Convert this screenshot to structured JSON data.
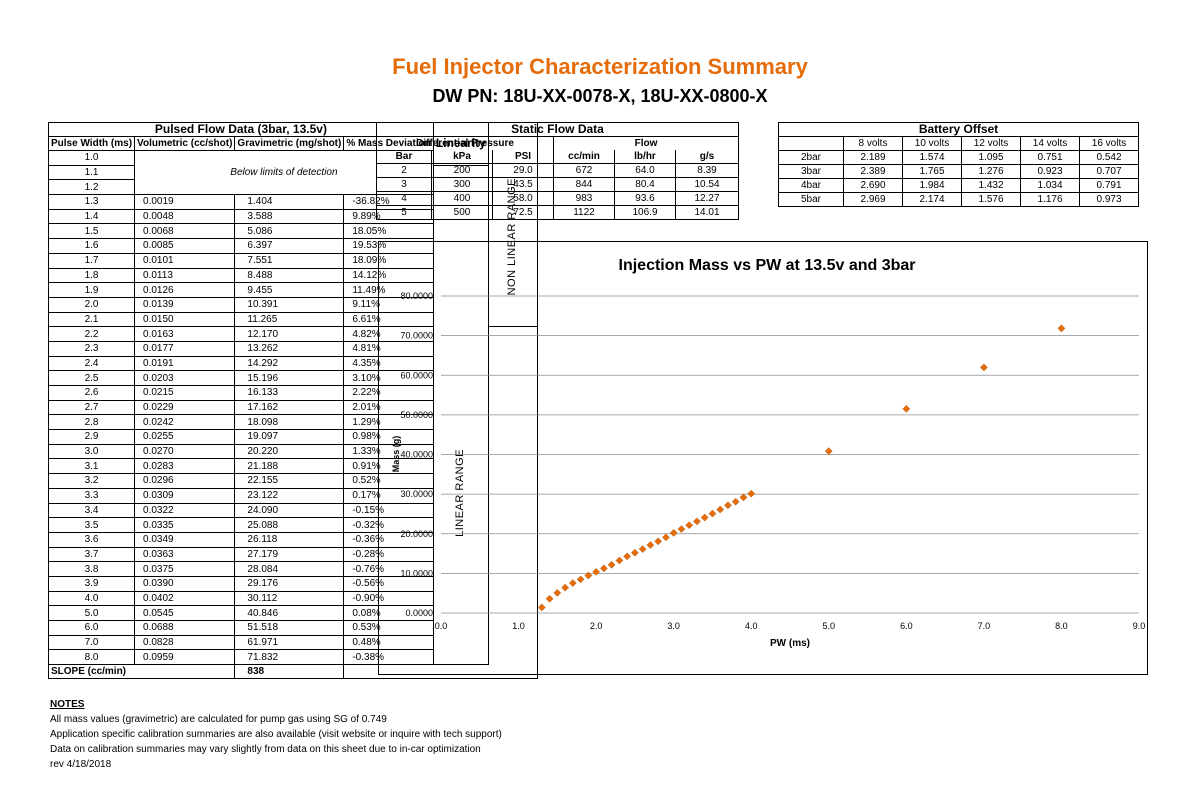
{
  "title": "Fuel Injector Characterization Summary",
  "subtitle": "DW PN: 18U-XX-0078-X, 18U-XX-0800-X",
  "pulsed": {
    "caption": "Pulsed Flow Data (3bar, 13.5v)",
    "headers": [
      "Pulse Width (ms)",
      "Volumetric (cc/shot)",
      "Gravimetric (mg/shot)",
      "% Mass Deviation",
      "Linearity"
    ],
    "below_limit_text": "Below limits of detection",
    "below_limit_rows": [
      "1.0",
      "1.1",
      "1.2"
    ],
    "non_linear_label": "NON LINEAR RANGE",
    "linear_label": "LINEAR RANGE",
    "rows": [
      [
        "1.3",
        "0.0019",
        "1.404",
        "-36.82%"
      ],
      [
        "1.4",
        "0.0048",
        "3.588",
        "9.89%"
      ],
      [
        "1.5",
        "0.0068",
        "5.086",
        "18.05%"
      ],
      [
        "1.6",
        "0.0085",
        "6.397",
        "19.53%"
      ],
      [
        "1.7",
        "0.0101",
        "7.551",
        "18.09%"
      ],
      [
        "1.8",
        "0.0113",
        "8.488",
        "14.12%"
      ],
      [
        "1.9",
        "0.0126",
        "9.455",
        "11.49%"
      ],
      [
        "2.0",
        "0.0139",
        "10.391",
        "9.11%"
      ],
      [
        "2.1",
        "0.0150",
        "11.265",
        "6.61%"
      ],
      [
        "2.2",
        "0.0163",
        "12.170",
        "4.82%"
      ],
      [
        "2.3",
        "0.0177",
        "13.262",
        "4.81%"
      ],
      [
        "2.4",
        "0.0191",
        "14.292",
        "4.35%"
      ],
      [
        "2.5",
        "0.0203",
        "15.196",
        "3.10%"
      ],
      [
        "2.6",
        "0.0215",
        "16.133",
        "2.22%"
      ],
      [
        "2.7",
        "0.0229",
        "17.162",
        "2.01%"
      ],
      [
        "2.8",
        "0.0242",
        "18.098",
        "1.29%"
      ],
      [
        "2.9",
        "0.0255",
        "19.097",
        "0.98%"
      ],
      [
        "3.0",
        "0.0270",
        "20.220",
        "1.33%"
      ],
      [
        "3.1",
        "0.0283",
        "21.188",
        "0.91%"
      ],
      [
        "3.2",
        "0.0296",
        "22.155",
        "0.52%"
      ],
      [
        "3.3",
        "0.0309",
        "23.122",
        "0.17%"
      ],
      [
        "3.4",
        "0.0322",
        "24.090",
        "-0.15%"
      ],
      [
        "3.5",
        "0.0335",
        "25.088",
        "-0.32%"
      ],
      [
        "3.6",
        "0.0349",
        "26.118",
        "-0.36%"
      ],
      [
        "3.7",
        "0.0363",
        "27.179",
        "-0.28%"
      ],
      [
        "3.8",
        "0.0375",
        "28.084",
        "-0.76%"
      ],
      [
        "3.9",
        "0.0390",
        "29.176",
        "-0.56%"
      ],
      [
        "4.0",
        "0.0402",
        "30.112",
        "-0.90%"
      ],
      [
        "5.0",
        "0.0545",
        "40.846",
        "0.08%"
      ],
      [
        "6.0",
        "0.0688",
        "51.518",
        "0.53%"
      ],
      [
        "7.0",
        "0.0828",
        "61.971",
        "0.48%"
      ],
      [
        "8.0",
        "0.0959",
        "71.832",
        "-0.38%"
      ]
    ],
    "slope_label": "SLOPE (cc/min)",
    "slope_value": "838"
  },
  "static_flow": {
    "caption": "Static Flow Data",
    "group_diff": "Differential Pressure",
    "group_flow": "Flow",
    "headers": [
      "Bar",
      "kPa",
      "PSI",
      "cc/min",
      "lb/hr",
      "g/s"
    ],
    "rows": [
      [
        "2",
        "200",
        "29.0",
        "672",
        "64.0",
        "8.39"
      ],
      [
        "3",
        "300",
        "43.5",
        "844",
        "80.4",
        "10.54"
      ],
      [
        "4",
        "400",
        "58.0",
        "983",
        "93.6",
        "12.27"
      ],
      [
        "5",
        "500",
        "72.5",
        "1122",
        "106.9",
        "14.01"
      ]
    ]
  },
  "battery_offset": {
    "caption": "Battery Offset",
    "headers": [
      "",
      "8 volts",
      "10 volts",
      "12 volts",
      "14 volts",
      "16 volts"
    ],
    "rows": [
      [
        "2bar",
        "2.189",
        "1.574",
        "1.095",
        "0.751",
        "0.542"
      ],
      [
        "3bar",
        "2.389",
        "1.765",
        "1.276",
        "0.923",
        "0.707"
      ],
      [
        "4bar",
        "2.690",
        "1.984",
        "1.432",
        "1.034",
        "0.791"
      ],
      [
        "5bar",
        "2.969",
        "2.174",
        "1.576",
        "1.176",
        "0.973"
      ]
    ]
  },
  "notes": {
    "heading": "NOTES",
    "lines": [
      "All mass values (gravimetric) are calculated for pump gas using SG of 0.749",
      "Application specific calibration summaries are also available (visit website or inquire with tech support)",
      "Data on calibration summaries may vary slightly from data on this sheet due to in-car optimization",
      "rev 4/18/2018"
    ]
  },
  "chart_data": {
    "type": "scatter",
    "title": "Injection Mass vs PW at 13.5v and 3bar",
    "xlabel": "PW (ms)",
    "ylabel": "Mass (g)",
    "xlim": [
      0,
      9
    ],
    "ylim": [
      0,
      80
    ],
    "x_ticks": [
      "0.0",
      "1.0",
      "2.0",
      "3.0",
      "4.0",
      "5.0",
      "6.0",
      "7.0",
      "8.0",
      "9.0"
    ],
    "y_ticks": [
      "0.0000",
      "10.0000",
      "20.0000",
      "30.0000",
      "40.0000",
      "50.0000",
      "60.0000",
      "70.0000",
      "80.0000"
    ],
    "grid": "horizontal",
    "marker_color": "#e46c0a",
    "x": [
      1.3,
      1.4,
      1.5,
      1.6,
      1.7,
      1.8,
      1.9,
      2.0,
      2.1,
      2.2,
      2.3,
      2.4,
      2.5,
      2.6,
      2.7,
      2.8,
      2.9,
      3.0,
      3.1,
      3.2,
      3.3,
      3.4,
      3.5,
      3.6,
      3.7,
      3.8,
      3.9,
      4.0,
      5.0,
      6.0,
      7.0,
      8.0
    ],
    "y": [
      1.404,
      3.588,
      5.086,
      6.397,
      7.551,
      8.488,
      9.455,
      10.391,
      11.265,
      12.17,
      13.262,
      14.292,
      15.196,
      16.133,
      17.162,
      18.098,
      19.097,
      20.22,
      21.188,
      22.155,
      23.122,
      24.09,
      25.088,
      26.118,
      27.179,
      28.084,
      29.176,
      30.112,
      40.846,
      51.518,
      61.971,
      71.832
    ]
  }
}
